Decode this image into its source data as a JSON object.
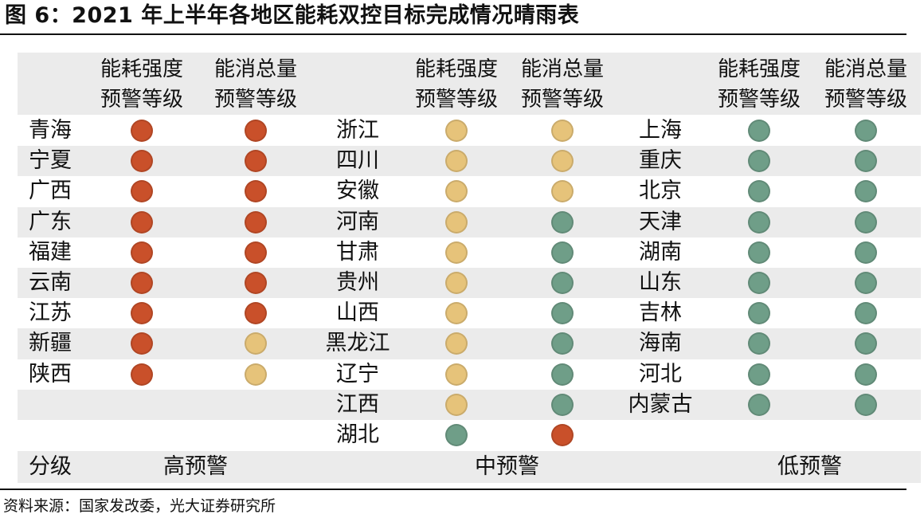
{
  "title": "图 6：2021 年上半年各地区能耗双控目标完成情况晴雨表",
  "source": "资料来源：国家发改委，光大证券研究所",
  "headers": {
    "intensity_line1": "能耗强度",
    "intensity_line2": "预警等级",
    "total_line1": "能消总量",
    "total_line2": "预警等级"
  },
  "footer": {
    "grade_label": "分级",
    "high": "高预警",
    "medium": "中预警",
    "low": "低预警"
  },
  "level_colors": {
    "red": "#c9502a",
    "yellow": "#e6c37a",
    "green": "#6f9e88"
  },
  "groups": [
    {
      "name": "高预警",
      "rows": [
        {
          "province": "青海",
          "intensity": "red",
          "total": "red"
        },
        {
          "province": "宁夏",
          "intensity": "red",
          "total": "red"
        },
        {
          "province": "广西",
          "intensity": "red",
          "total": "red"
        },
        {
          "province": "广东",
          "intensity": "red",
          "total": "red"
        },
        {
          "province": "福建",
          "intensity": "red",
          "total": "red"
        },
        {
          "province": "云南",
          "intensity": "red",
          "total": "red"
        },
        {
          "province": "江苏",
          "intensity": "red",
          "total": "red"
        },
        {
          "province": "新疆",
          "intensity": "red",
          "total": "yellow"
        },
        {
          "province": "陕西",
          "intensity": "red",
          "total": "yellow"
        }
      ]
    },
    {
      "name": "中预警",
      "rows": [
        {
          "province": "浙江",
          "intensity": "yellow",
          "total": "yellow"
        },
        {
          "province": "四川",
          "intensity": "yellow",
          "total": "yellow"
        },
        {
          "province": "安徽",
          "intensity": "yellow",
          "total": "yellow"
        },
        {
          "province": "河南",
          "intensity": "yellow",
          "total": "green"
        },
        {
          "province": "甘肃",
          "intensity": "yellow",
          "total": "green"
        },
        {
          "province": "贵州",
          "intensity": "yellow",
          "total": "green"
        },
        {
          "province": "山西",
          "intensity": "yellow",
          "total": "green"
        },
        {
          "province": "黑龙江",
          "intensity": "yellow",
          "total": "green"
        },
        {
          "province": "辽宁",
          "intensity": "yellow",
          "total": "green"
        },
        {
          "province": "江西",
          "intensity": "yellow",
          "total": "green"
        },
        {
          "province": "湖北",
          "intensity": "green",
          "total": "red"
        }
      ]
    },
    {
      "name": "低预警",
      "rows": [
        {
          "province": "上海",
          "intensity": "green",
          "total": "green"
        },
        {
          "province": "重庆",
          "intensity": "green",
          "total": "green"
        },
        {
          "province": "北京",
          "intensity": "green",
          "total": "green"
        },
        {
          "province": "天津",
          "intensity": "green",
          "total": "green"
        },
        {
          "province": "湖南",
          "intensity": "green",
          "total": "green"
        },
        {
          "province": "山东",
          "intensity": "green",
          "total": "green"
        },
        {
          "province": "吉林",
          "intensity": "green",
          "total": "green"
        },
        {
          "province": "海南",
          "intensity": "green",
          "total": "green"
        },
        {
          "province": "河北",
          "intensity": "green",
          "total": "green"
        },
        {
          "province": "内蒙古",
          "intensity": "green",
          "total": "green"
        }
      ]
    }
  ]
}
